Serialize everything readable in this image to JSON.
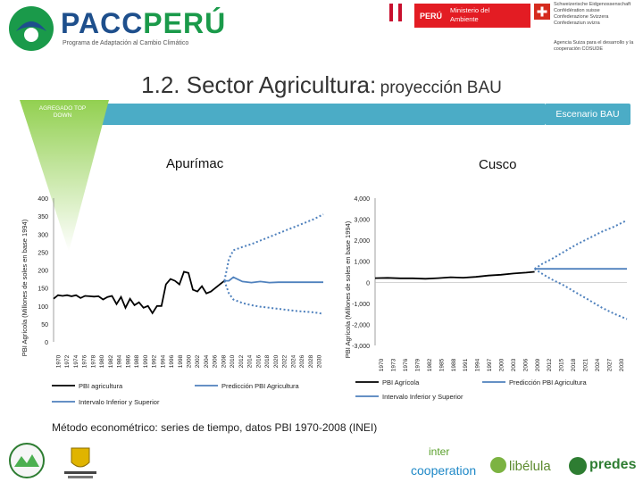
{
  "header": {
    "logo_text_part1": "PACC",
    "logo_text_part2": "PERÚ",
    "logo_subtitle": "Programa de Adaptación al Cambio Climático",
    "peru_label": "PERÚ",
    "ministry_label": "Ministerio del Ambiente",
    "swiss_lines": [
      "Schweizerische Eidgenossenschaft",
      "Confédération suisse",
      "Confederazione Svizzera",
      "Confederaziun svizra"
    ],
    "swiss_agency": "Agencia Suiza para el desarrollo y la cooperación COSUDE",
    "colors": {
      "pacc_green": "#1a9a4a",
      "pacc_blue": "#1e4f8c",
      "peru_red": "#e31c23",
      "swiss_red": "#d52b1e"
    }
  },
  "slide": {
    "title_main": "1.2. Sector Agricultura:",
    "title_sub": "proyección BAU",
    "funnel_label": "AGREGADO TOP DOWN",
    "scenario_label": "Escenario BAU",
    "accent_color": "#4bacc6",
    "funnel_color": "#92d050",
    "note": "Método econométrico: series de tiempo, datos PBI 1970-2008 (INEI)"
  },
  "chart_data": [
    {
      "type": "line",
      "title": "Apurímac",
      "ylabel": "PBI Agrícola (Millones de soles en base 1994)",
      "ylim": [
        0,
        400
      ],
      "yticks": [
        0,
        50,
        100,
        150,
        200,
        250,
        300,
        350,
        400
      ],
      "xticks": [
        "1970",
        "1972",
        "1974",
        "1976",
        "1978",
        "1980",
        "1982",
        "1984",
        "1986",
        "1988",
        "1990",
        "1992",
        "1994",
        "1996",
        "1998",
        "2000",
        "2002",
        "2004",
        "2006",
        "2008",
        "2010",
        "2012",
        "2014",
        "2016",
        "2018",
        "2020",
        "2022",
        "2024",
        "2026",
        "2028",
        "2030"
      ],
      "series": [
        {
          "name": "PBI agricultura",
          "color": "#000000",
          "style": "solid",
          "x": [
            1970,
            1971,
            1972,
            1973,
            1974,
            1975,
            1976,
            1977,
            1978,
            1979,
            1980,
            1981,
            1982,
            1983,
            1984,
            1985,
            1986,
            1987,
            1988,
            1989,
            1990,
            1991,
            1992,
            1993,
            1994,
            1995,
            1996,
            1997,
            1998,
            1999,
            2000,
            2001,
            2002,
            2003,
            2004,
            2005,
            2006,
            2007,
            2008
          ],
          "y": [
            120,
            130,
            128,
            130,
            127,
            130,
            122,
            128,
            127,
            126,
            127,
            118,
            125,
            128,
            105,
            125,
            95,
            120,
            102,
            110,
            95,
            100,
            80,
            100,
            100,
            160,
            175,
            170,
            160,
            195,
            192,
            145,
            140,
            155,
            135,
            140,
            150,
            160,
            170
          ]
        },
        {
          "name": "Predicción PBI Agricultura",
          "color": "#4f81bd",
          "style": "solid",
          "x": [
            2008,
            2009,
            2010,
            2012,
            2014,
            2016,
            2018,
            2020,
            2022,
            2024,
            2026,
            2028,
            2030
          ],
          "y": [
            170,
            170,
            180,
            168,
            165,
            168,
            165,
            166,
            166,
            166,
            166,
            166,
            166
          ]
        },
        {
          "name": "Intervalo Inferior y Superior",
          "color": "#4f81bd",
          "style": "dotted",
          "x": [
            2008,
            2009,
            2010,
            2012,
            2014,
            2016,
            2018,
            2020,
            2022,
            2024,
            2026,
            2028,
            2030
          ],
          "y": [
            170,
            230,
            255,
            264,
            272,
            282,
            292,
            302,
            312,
            322,
            332,
            342,
            355
          ]
        },
        {
          "name": "Intervalo Inferior y Superior",
          "color": "#4f81bd",
          "style": "dotted",
          "x": [
            2008,
            2009,
            2010,
            2012,
            2014,
            2016,
            2018,
            2020,
            2022,
            2024,
            2026,
            2028,
            2030
          ],
          "y": [
            170,
            135,
            118,
            108,
            102,
            98,
            95,
            92,
            89,
            86,
            84,
            82,
            78
          ]
        }
      ],
      "legend": [
        "PBI agricultura",
        "Predicción PBI Agricultura",
        "Intervalo Inferior y Superior"
      ]
    },
    {
      "type": "line",
      "title": "Cusco",
      "ylabel": "PBI Agrícola (Millones de soles en base 1994)",
      "ylim": [
        -3000,
        4000
      ],
      "yticks": [
        -3000,
        -2000,
        -1000,
        0,
        1000,
        2000,
        3000,
        4000
      ],
      "ytick_labels": [
        "-3,000",
        "-2,000",
        "-1,000",
        "0",
        "1,000",
        "2,000",
        "3,000",
        "4,000"
      ],
      "xticks": [
        "1970",
        "1973",
        "1976",
        "1979",
        "1982",
        "1985",
        "1988",
        "1991",
        "1994",
        "1997",
        "2000",
        "2003",
        "2006",
        "2009",
        "2012",
        "2015",
        "2018",
        "2021",
        "2024",
        "2027",
        "2030"
      ],
      "series": [
        {
          "name": "PBI Agrícola",
          "color": "#000000",
          "style": "solid",
          "x": [
            1970,
            1973,
            1976,
            1979,
            1982,
            1985,
            1988,
            1991,
            1994,
            1997,
            2000,
            2003,
            2006,
            2008
          ],
          "y": [
            200,
            210,
            190,
            190,
            170,
            200,
            240,
            220,
            260,
            320,
            360,
            420,
            460,
            500
          ]
        },
        {
          "name": "Predicción PBI Agricultura",
          "color": "#4f81bd",
          "style": "solid",
          "x": [
            2008,
            2010,
            2012,
            2015,
            2018,
            2021,
            2024,
            2027,
            2030
          ],
          "y": [
            640,
            640,
            640,
            640,
            640,
            640,
            640,
            640,
            640
          ]
        },
        {
          "name": "Intervalo Inferior y Superior",
          "color": "#4f81bd",
          "style": "dotted",
          "x": [
            2008,
            2010,
            2012,
            2015,
            2018,
            2021,
            2024,
            2027,
            2030
          ],
          "y": [
            640,
            900,
            1100,
            1450,
            1800,
            2100,
            2400,
            2650,
            2950
          ]
        },
        {
          "name": "Intervalo Inferior y Superior",
          "color": "#4f81bd",
          "style": "dotted",
          "x": [
            2008,
            2010,
            2012,
            2015,
            2018,
            2021,
            2024,
            2027,
            2030
          ],
          "y": [
            640,
            380,
            150,
            -150,
            -500,
            -850,
            -1200,
            -1500,
            -1750
          ]
        }
      ],
      "legend": [
        "PBI Agrícola",
        "Predicción PBI Agricultura",
        "Intervalo Inferior y Superior"
      ]
    }
  ],
  "footer": {
    "logos": [
      "Gobierno Regional Apurímac",
      "inter cooperation",
      "libélula",
      "predes"
    ]
  }
}
